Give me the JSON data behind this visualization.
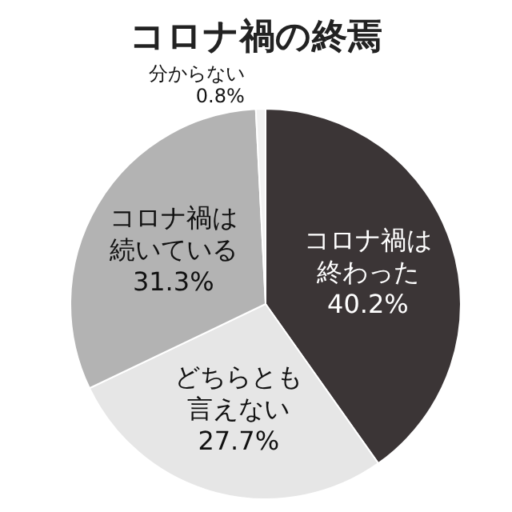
{
  "chart_data": {
    "type": "pie",
    "title": "コロナ禍の終焉",
    "categories": [
      "コロナ禍は終わった",
      "どちらとも言えない",
      "コロナ禍は続いている",
      "分からない"
    ],
    "values": [
      40.2,
      27.7,
      31.3,
      0.8
    ],
    "colors": [
      "#3b3536",
      "#e6e6e6",
      "#b3b3b3",
      "#f2f2f2"
    ],
    "value_labels": [
      "40.2%",
      "27.7%",
      "31.3%",
      "0.8%"
    ],
    "legend": false
  }
}
